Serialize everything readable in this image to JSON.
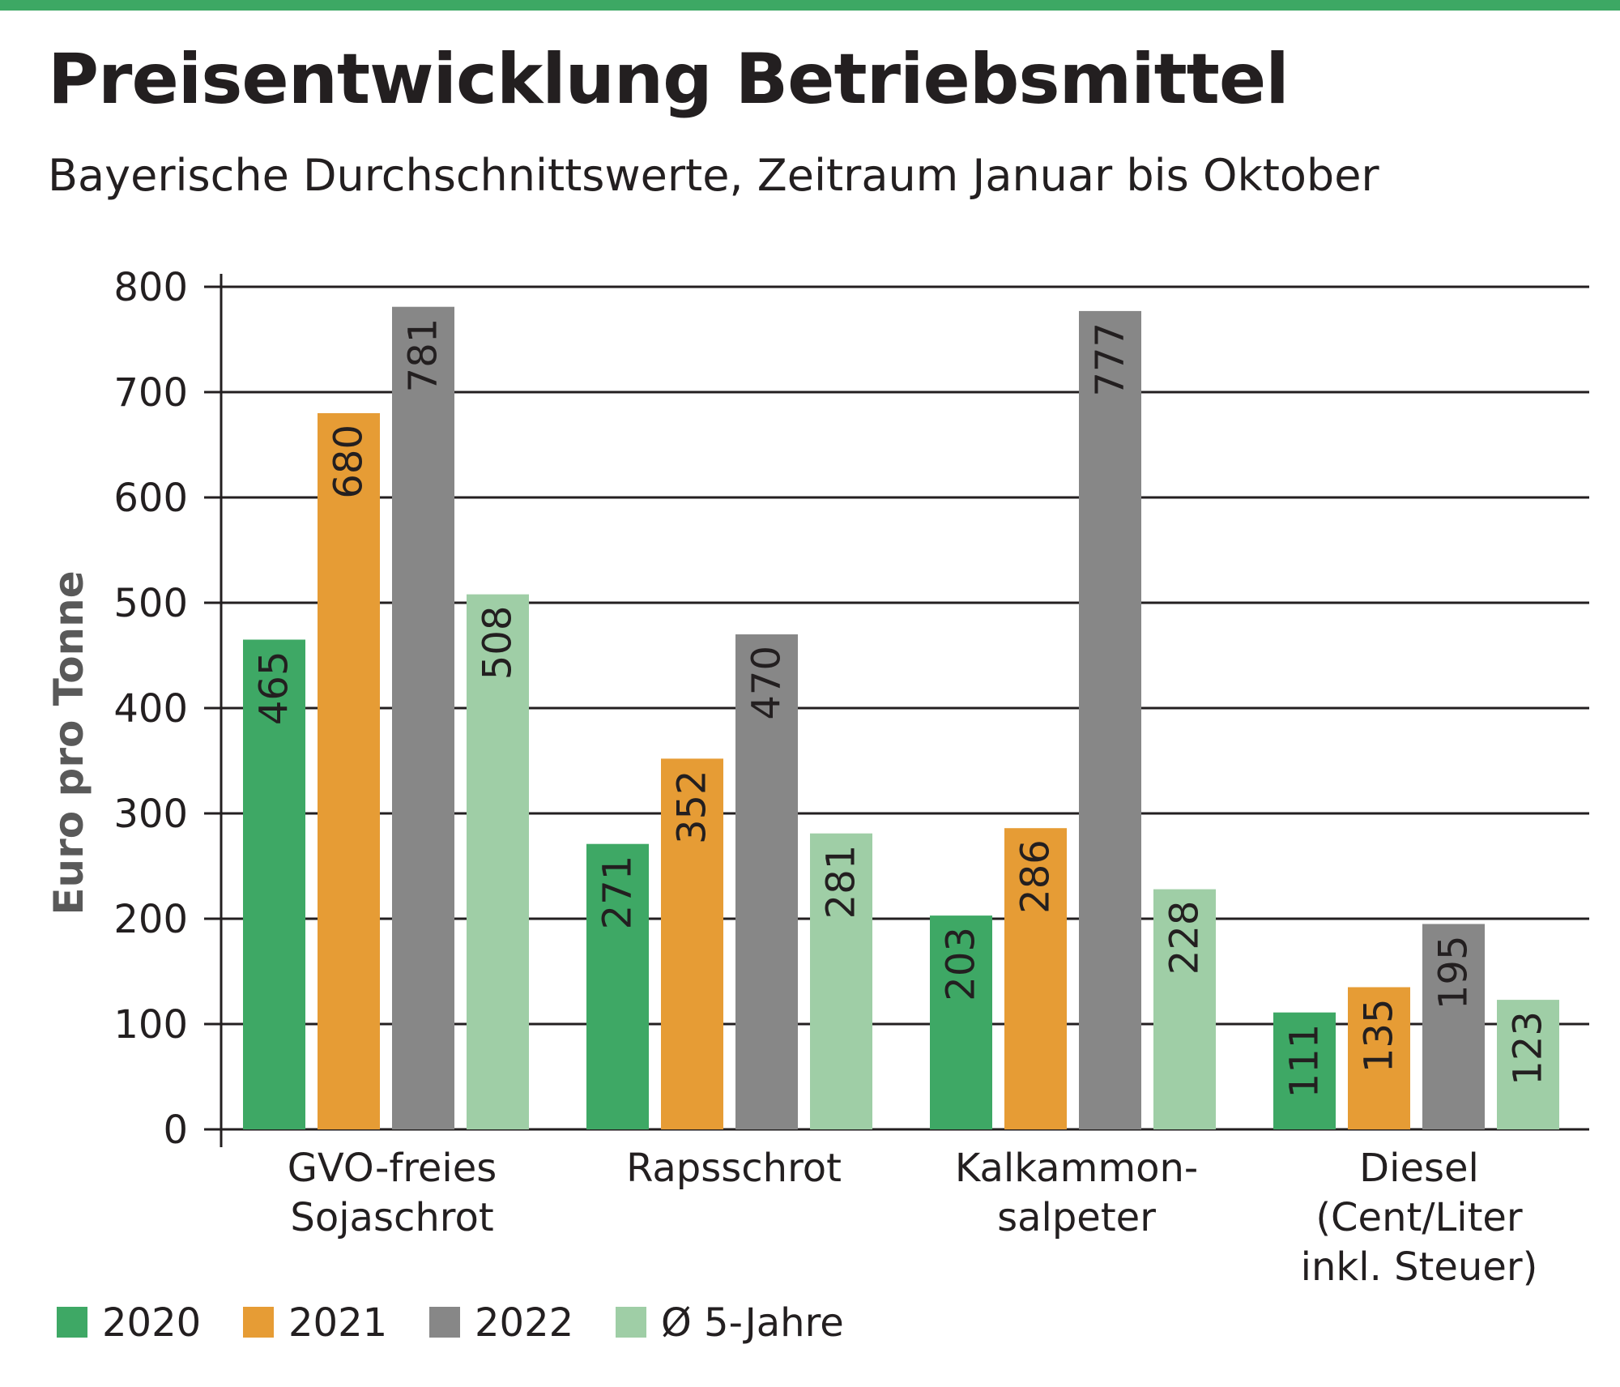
{
  "chart_data": {
    "type": "bar",
    "title": "Preisentwicklung Betriebsmittel",
    "subtitle": "Bayerische Durchschnittswerte, Zeitraum Januar bis Oktober",
    "ylabel": "Euro pro Tonne",
    "ylim": [
      0,
      800
    ],
    "yticks": [
      0,
      100,
      200,
      300,
      400,
      500,
      600,
      700,
      800
    ],
    "grid": true,
    "legend_position": "bottom-left",
    "categories": [
      [
        "GVO-freies",
        "Sojaschrot"
      ],
      [
        "Rapsschrot"
      ],
      [
        "Kalkammon-",
        "salpeter"
      ],
      [
        "Diesel",
        "(Cent/Liter",
        "inkl. Steuer)"
      ]
    ],
    "series": [
      {
        "name": "2020",
        "color": "#3ea865",
        "values": [
          465,
          271,
          203,
          111
        ]
      },
      {
        "name": "2021",
        "color": "#e69c35",
        "values": [
          680,
          352,
          286,
          135
        ]
      },
      {
        "name": "2022",
        "color": "#878787",
        "values": [
          781,
          470,
          777,
          195
        ]
      },
      {
        "name": "Ø 5-Jahre",
        "color": "#9fcea6",
        "values": [
          508,
          281,
          228,
          123
        ]
      }
    ],
    "accent_color": "#3da864"
  }
}
